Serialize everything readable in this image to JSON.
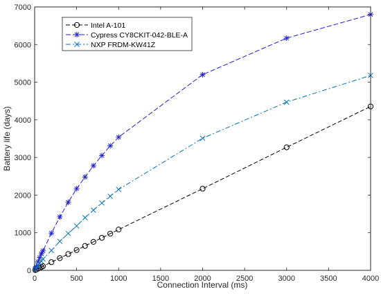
{
  "chart_data": {
    "type": "line",
    "xlabel": "Connection Interval (ms)",
    "ylabel": "Battery life (days)",
    "xlim": [
      0,
      4000
    ],
    "ylim": [
      0,
      7000
    ],
    "x_ticks": [
      "0",
      "500",
      "1000",
      "1500",
      "2000",
      "2500",
      "3000",
      "3500",
      "4000"
    ],
    "y_ticks": [
      "0",
      "1000",
      "2000",
      "3000",
      "4000",
      "5000",
      "6000",
      "7000"
    ],
    "grid": false,
    "legend_position": "top-left",
    "series": [
      {
        "name": "Intel A-101",
        "color": "#000000",
        "marker": "circle",
        "x": [
          7.5,
          20,
          40,
          60,
          80,
          100,
          200,
          300,
          400,
          500,
          600,
          700,
          800,
          900,
          1000,
          2000,
          3000,
          4000
        ],
        "y": [
          8,
          22,
          44,
          66,
          88,
          110,
          218,
          325,
          433,
          540,
          650,
          757,
          865,
          975,
          1085,
          2170,
          3270,
          4355
        ]
      },
      {
        "name": "Cypress CY8CKIT-042-BLE-A",
        "color": "#1f1fd1",
        "marker": "asterisk",
        "x": [
          7.5,
          20,
          40,
          60,
          80,
          100,
          200,
          300,
          400,
          500,
          600,
          700,
          800,
          900,
          1000,
          2000,
          3000,
          4000
        ],
        "y": [
          40,
          100,
          225,
          340,
          440,
          520,
          990,
          1420,
          1810,
          2170,
          2480,
          2780,
          3050,
          3310,
          3540,
          5200,
          6170,
          6800
        ]
      },
      {
        "name": "NXP FRDM-KW41Z",
        "color": "#0072bd",
        "marker": "x",
        "x": [
          7.5,
          20,
          40,
          60,
          80,
          100,
          200,
          300,
          400,
          500,
          600,
          700,
          800,
          900,
          1000,
          2000,
          3000,
          4000
        ],
        "y": [
          25,
          60,
          130,
          190,
          245,
          300,
          530,
          770,
          980,
          1180,
          1400,
          1600,
          1790,
          1970,
          2150,
          3510,
          4470,
          5180
        ]
      }
    ]
  }
}
